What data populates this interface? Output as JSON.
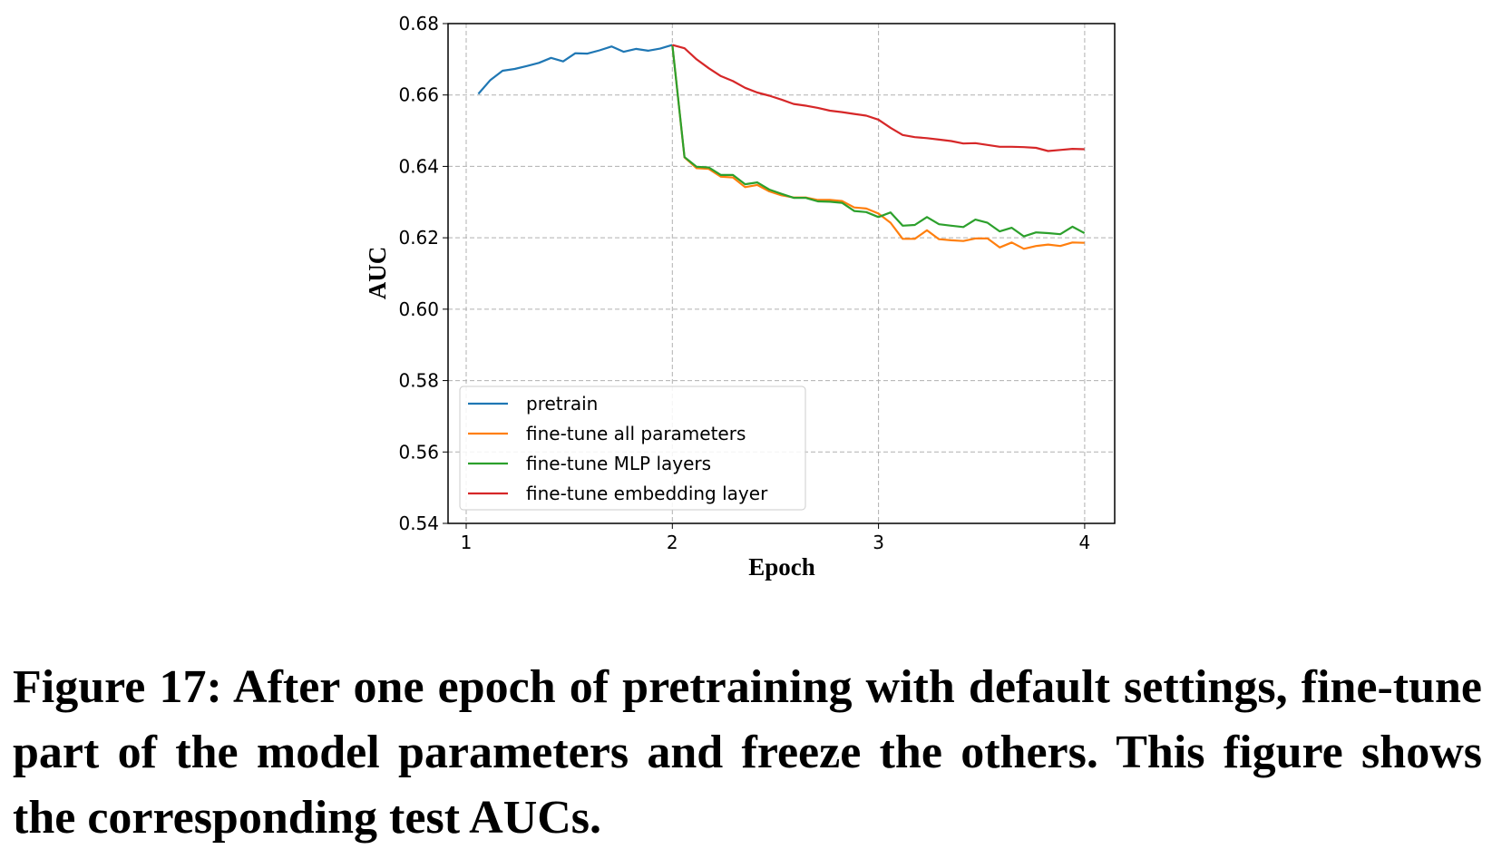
{
  "chart_data": {
    "type": "line",
    "xlabel": "Epoch",
    "ylabel": "AUC",
    "xlim": [
      0.93,
      4.15
    ],
    "ylim": [
      0.54,
      0.68
    ],
    "xticks": [
      1,
      2,
      3,
      4
    ],
    "xtick_labels": [
      "1",
      "2",
      "3",
      "4"
    ],
    "yticks": [
      0.54,
      0.56,
      0.58,
      0.6,
      0.62,
      0.64,
      0.66,
      0.68
    ],
    "ytick_labels": [
      "0.54",
      "0.56",
      "0.58",
      "0.60",
      "0.62",
      "0.64",
      "0.66",
      "0.68"
    ],
    "grid": true,
    "legend_position": "lower-left",
    "series": [
      {
        "name": "pretrain",
        "color": "#1f77b4",
        "x_start": 1.0588,
        "x_step": 0.0588,
        "values": [
          0.6603,
          0.6642,
          0.6668,
          0.6673,
          0.6681,
          0.669,
          0.6704,
          0.6694,
          0.6717,
          0.6716,
          0.6725,
          0.6736,
          0.6721,
          0.6729,
          0.6724,
          0.673,
          0.674
        ]
      },
      {
        "name": "fine-tune all parameters",
        "color": "#ff7f0e",
        "x_start": 2.0,
        "x_step": 0.0588,
        "values": [
          0.674,
          0.6425,
          0.6395,
          0.6393,
          0.6371,
          0.6369,
          0.6342,
          0.6348,
          0.633,
          0.6319,
          0.6313,
          0.6313,
          0.6306,
          0.6306,
          0.6303,
          0.6285,
          0.6282,
          0.6268,
          0.6242,
          0.6197,
          0.6197,
          0.6221,
          0.6196,
          0.6193,
          0.6191,
          0.6198,
          0.6198,
          0.6173,
          0.6187,
          0.6169,
          0.6177,
          0.6181,
          0.6177,
          0.6187,
          0.6186
        ]
      },
      {
        "name": "fine-tune MLP layers",
        "color": "#2ca02c",
        "x_start": 2.0,
        "x_step": 0.0588,
        "values": [
          0.674,
          0.6426,
          0.6399,
          0.6397,
          0.6376,
          0.6376,
          0.635,
          0.6355,
          0.6335,
          0.6323,
          0.6312,
          0.6312,
          0.6302,
          0.6301,
          0.6298,
          0.6275,
          0.6272,
          0.6258,
          0.6271,
          0.6234,
          0.6236,
          0.6258,
          0.6238,
          0.6234,
          0.623,
          0.6251,
          0.6242,
          0.6218,
          0.6228,
          0.6204,
          0.6215,
          0.6213,
          0.621,
          0.6231,
          0.6213
        ]
      },
      {
        "name": "fine-tune embedding layer",
        "color": "#d62728",
        "x_start": 2.0,
        "x_step": 0.0588,
        "values": [
          0.674,
          0.6731,
          0.67,
          0.6675,
          0.6653,
          0.6639,
          0.662,
          0.6607,
          0.6598,
          0.6587,
          0.6575,
          0.657,
          0.6564,
          0.6556,
          0.6552,
          0.6547,
          0.6542,
          0.6531,
          0.6508,
          0.6488,
          0.6482,
          0.6479,
          0.6475,
          0.6471,
          0.6464,
          0.6465,
          0.646,
          0.6455,
          0.6455,
          0.6454,
          0.6452,
          0.6443,
          0.6446,
          0.6449,
          0.6448
        ]
      }
    ]
  },
  "caption": "Figure 17: After one epoch of pretraining with default settings, fine-tune part of the model parameters and freeze the others. This figure shows the corresponding test AUCs."
}
